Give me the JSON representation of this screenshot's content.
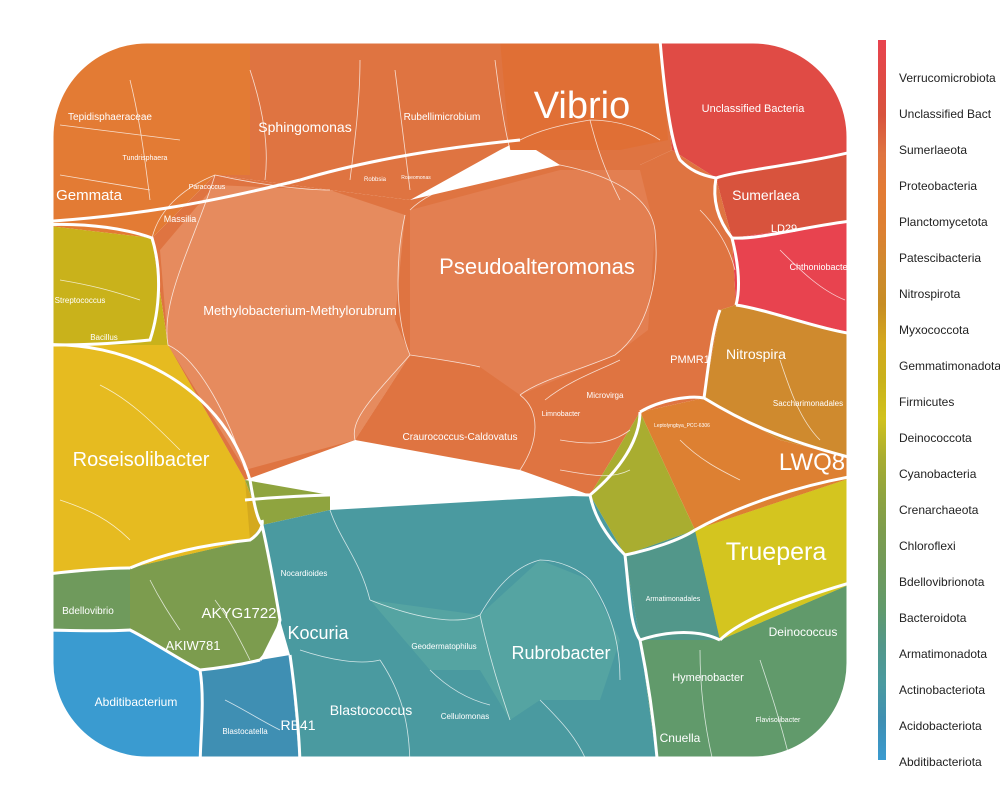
{
  "diagram": {
    "groups": [
      {
        "name": "Verrucomicrobiota",
        "color": "#e8434f"
      },
      {
        "name": "Unclassified Bacteria",
        "color": "#e04b45"
      },
      {
        "name": "Sumerlaeota",
        "color": "#d8533d"
      },
      {
        "name": "Proteobacteria",
        "color": "#df7441"
      },
      {
        "name": "Planctomycetota",
        "color": "#e37b34"
      },
      {
        "name": "Patescibacteria",
        "color": "#dd8032"
      },
      {
        "name": "Nitrospirota",
        "color": "#cf8a2e"
      },
      {
        "name": "Myxococcota",
        "color": "#c78d24"
      },
      {
        "name": "Gemmatimonadota",
        "color": "#d4a91e"
      },
      {
        "name": "Firmicutes",
        "color": "#c9b21b"
      },
      {
        "name": "Deinococcota",
        "color": "#d1c21d"
      },
      {
        "name": "Cyanobacteria",
        "color": "#a9ad30"
      },
      {
        "name": "Crenarchaeota",
        "color": "#8fa43f"
      },
      {
        "name": "Chloroflexi",
        "color": "#7c9c4e"
      },
      {
        "name": "Bdellovibrionota",
        "color": "#6f9a5c"
      },
      {
        "name": "Bacteroidota",
        "color": "#619a6b"
      },
      {
        "name": "Armatimonadota",
        "color": "#52978a"
      },
      {
        "name": "Actinobacteriota",
        "color": "#4a9aa0"
      },
      {
        "name": "Acidobacteriota",
        "color": "#3f8fb3"
      },
      {
        "name": "Abditibacteriota",
        "color": "#3a9bd0"
      }
    ],
    "legend_display": [
      "Verrucomicrobiota",
      "Unclassified Bact",
      "Sumerlaeota",
      "Proteobacteria",
      "Planctomycetota",
      "Patescibacteria",
      "Nitrospirota",
      "Myxococcota",
      "Gemmatimonadota",
      "Firmicutes",
      "Deinococcota",
      "Cyanobacteria",
      "Crenarchaeota",
      "Chloroflexi",
      "Bdellovibrionota",
      "Bacteroidota",
      "Armatimonadota",
      "Actinobacteriota",
      "Acidobacteriota",
      "Abditibacteriota"
    ],
    "cells": [
      {
        "label": "Vibrio",
        "group": "Proteobacteria",
        "size": "xl"
      },
      {
        "label": "Pseudoalteromonas",
        "group": "Proteobacteria",
        "size": "l"
      },
      {
        "label": "Methylobacterium-Methylorubrum",
        "group": "Proteobacteria",
        "size": "m"
      },
      {
        "label": "Craurococcus-Caldovatus",
        "group": "Proteobacteria",
        "size": "s"
      },
      {
        "label": "Sphingomonas",
        "group": "Proteobacteria",
        "size": "m"
      },
      {
        "label": "Rubellimicrobium",
        "group": "Proteobacteria",
        "size": "s"
      },
      {
        "label": "Tepidisphaeraceae",
        "group": "Planctomycetota",
        "size": "s"
      },
      {
        "label": "Gemmata",
        "group": "Planctomycetota",
        "size": "m"
      },
      {
        "label": "Massilia",
        "group": "Proteobacteria",
        "size": "xs"
      },
      {
        "label": "Paracoccus",
        "group": "Proteobacteria",
        "size": "xs"
      },
      {
        "label": "Tundrisphaera",
        "group": "Planctomycetota",
        "size": "xs"
      },
      {
        "label": "Unclassified Bacteria",
        "group": "Unclassified Bacteria",
        "size": "s"
      },
      {
        "label": "Sumerlaea",
        "group": "Sumerlaeota",
        "size": "m"
      },
      {
        "label": "LD29",
        "group": "Verrucomicrobiota",
        "size": "s"
      },
      {
        "label": "Chthoniobacter",
        "group": "Verrucomicrobiota",
        "size": "s"
      },
      {
        "label": "Nitrospira",
        "group": "Nitrospirota",
        "size": "m"
      },
      {
        "label": "Saccharimonadales",
        "group": "Patescibacteria",
        "size": "xs"
      },
      {
        "label": "LWQ8",
        "group": "Patescibacteria",
        "size": "l"
      },
      {
        "label": "Truepera",
        "group": "Deinococcota",
        "size": "l"
      },
      {
        "label": "Deinococcus",
        "group": "Deinococcota",
        "size": "s"
      },
      {
        "label": "Roseisolibacter",
        "group": "Gemmatimonadota",
        "size": "l"
      },
      {
        "label": "Streptococcus",
        "group": "Firmicutes",
        "size": "xs"
      },
      {
        "label": "Bacillus",
        "group": "Firmicutes",
        "size": "xs"
      },
      {
        "label": "AKYG1722",
        "group": "Chloroflexi",
        "size": "m"
      },
      {
        "label": "AKIW781",
        "group": "Chloroflexi",
        "size": "s"
      },
      {
        "label": "Bdellovibrio",
        "group": "Bdellovibrionota",
        "size": "s"
      },
      {
        "label": "Abditibacterium",
        "group": "Abditibacteriota",
        "size": "s"
      },
      {
        "label": "Blastocatella",
        "group": "Acidobacteriota",
        "size": "xs"
      },
      {
        "label": "RB41",
        "group": "Acidobacteriota",
        "size": "m"
      },
      {
        "label": "Kocuria",
        "group": "Actinobacteriota",
        "size": "l"
      },
      {
        "label": "Nocardioides",
        "group": "Actinobacteriota",
        "size": "xs"
      },
      {
        "label": "Blastococcus",
        "group": "Actinobacteriota",
        "size": "m"
      },
      {
        "label": "Rubrobacter",
        "group": "Actinobacteriota",
        "size": "l"
      },
      {
        "label": "Geodermatophilus",
        "group": "Actinobacteriota",
        "size": "xs"
      },
      {
        "label": "Cellulomonas",
        "group": "Actinobacteriota",
        "size": "xs"
      },
      {
        "label": "Armatimonadales",
        "group": "Armatimonadota",
        "size": "xs"
      },
      {
        "label": "Hymenobacter",
        "group": "Bacteroidota",
        "size": "s"
      },
      {
        "label": "Cnuella",
        "group": "Bacteroidota",
        "size": "s"
      },
      {
        "label": "Flavisolibacter",
        "group": "Bacteroidota",
        "size": "xs"
      },
      {
        "label": "Microvirga",
        "group": "Proteobacteria",
        "size": "xs"
      },
      {
        "label": "Limnobacter",
        "group": "Proteobacteria",
        "size": "xs"
      },
      {
        "label": "PMMR1",
        "group": "Proteobacteria",
        "size": "s"
      },
      {
        "label": "Leptolyngbya_PCC-6306",
        "group": "Cyanobacteria",
        "size": "xs"
      },
      {
        "label": "Roseomonas",
        "group": "Proteobacteria",
        "size": "xs"
      },
      {
        "label": "Robbsia",
        "group": "Proteobacteria",
        "size": "xs"
      }
    ]
  }
}
